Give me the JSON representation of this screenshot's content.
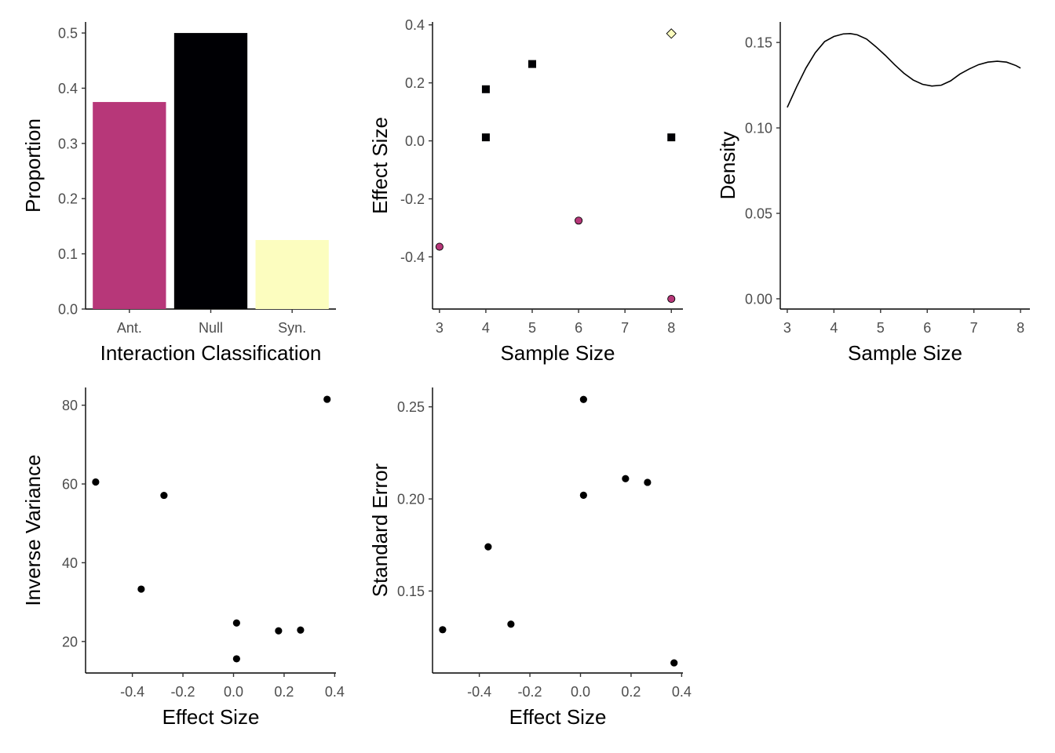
{
  "chart_data": [
    {
      "type": "bar",
      "xlabel": "Interaction Classification",
      "ylabel": "Proportion",
      "categories": [
        "Ant.",
        "Null",
        "Syn."
      ],
      "values": [
        0.375,
        0.5,
        0.125
      ],
      "colors": [
        "#B73779",
        "#000004",
        "#FCFDBF"
      ],
      "ylim": [
        0,
        0.52
      ],
      "yticks": [
        0.0,
        0.1,
        0.2,
        0.3,
        0.4,
        0.5
      ],
      "ytick_labels": [
        "0.0",
        "0.1",
        "0.2",
        "0.3",
        "0.4",
        "0.5"
      ]
    },
    {
      "type": "scatter",
      "xlabel": "Sample Size",
      "ylabel": "Effect Size",
      "xlim": [
        2.85,
        8.25
      ],
      "ylim": [
        -0.58,
        0.41
      ],
      "xticks": [
        3,
        4,
        5,
        6,
        7,
        8
      ],
      "xtick_labels": [
        "3",
        "4",
        "5",
        "6",
        "7",
        "8"
      ],
      "yticks": [
        -0.4,
        -0.2,
        0.0,
        0.2,
        0.4
      ],
      "ytick_labels": [
        "-0.4",
        "-0.2",
        "0.0",
        "0.2",
        "0.4"
      ],
      "points": [
        {
          "x": 3,
          "y": -0.365,
          "class": "Ant.",
          "shape": "circle",
          "color": "#B73779"
        },
        {
          "x": 6,
          "y": -0.275,
          "class": "Ant.",
          "shape": "circle",
          "color": "#B73779"
        },
        {
          "x": 8,
          "y": -0.545,
          "class": "Ant.",
          "shape": "circle",
          "color": "#B73779"
        },
        {
          "x": 4,
          "y": 0.178,
          "class": "Null",
          "shape": "square",
          "color": "#000004"
        },
        {
          "x": 4,
          "y": 0.012,
          "class": "Null",
          "shape": "square",
          "color": "#000004"
        },
        {
          "x": 5,
          "y": 0.265,
          "class": "Null",
          "shape": "square",
          "color": "#000004"
        },
        {
          "x": 8,
          "y": 0.012,
          "class": "Null",
          "shape": "square",
          "color": "#000004"
        },
        {
          "x": 8,
          "y": 0.37,
          "class": "Syn.",
          "shape": "diamond",
          "color": "#FCFDBF"
        }
      ]
    },
    {
      "type": "line",
      "xlabel": "Sample Size",
      "ylabel": "Density",
      "xlim": [
        2.85,
        8.2
      ],
      "ylim": [
        -0.006,
        0.162
      ],
      "xticks": [
        3,
        4,
        5,
        6,
        7,
        8
      ],
      "xtick_labels": [
        "3",
        "4",
        "5",
        "6",
        "7",
        "8"
      ],
      "yticks": [
        0.0,
        0.05,
        0.1,
        0.15
      ],
      "ytick_labels": [
        "0.00",
        "0.05",
        "0.10",
        "0.15"
      ],
      "x": [
        3.0,
        3.2,
        3.4,
        3.6,
        3.8,
        4.0,
        4.2,
        4.35,
        4.5,
        4.7,
        4.9,
        5.1,
        5.3,
        5.5,
        5.7,
        5.9,
        6.1,
        6.3,
        6.5,
        6.7,
        6.9,
        7.1,
        7.3,
        7.5,
        7.7,
        7.9,
        8.0
      ],
      "y": [
        0.112,
        0.124,
        0.135,
        0.144,
        0.1505,
        0.1535,
        0.155,
        0.1552,
        0.1545,
        0.152,
        0.1475,
        0.1425,
        0.137,
        0.132,
        0.128,
        0.1255,
        0.1245,
        0.125,
        0.1275,
        0.1315,
        0.1345,
        0.137,
        0.1385,
        0.139,
        0.1385,
        0.1365,
        0.135
      ]
    },
    {
      "type": "scatter",
      "xlabel": "Effect Size",
      "ylabel": "Inverse Variance",
      "xlim": [
        -0.585,
        0.405
      ],
      "ylim": [
        12,
        84.5
      ],
      "xticks": [
        -0.4,
        -0.2,
        0.0,
        0.2,
        0.4
      ],
      "xtick_labels": [
        "-0.4",
        "-0.2",
        "0.0",
        "0.2",
        "0.4"
      ],
      "yticks": [
        20,
        40,
        60,
        80
      ],
      "ytick_labels": [
        "20",
        "40",
        "60",
        "80"
      ],
      "points": [
        {
          "x": -0.545,
          "y": 60.5
        },
        {
          "x": -0.365,
          "y": 33.3
        },
        {
          "x": -0.275,
          "y": 57.1
        },
        {
          "x": 0.012,
          "y": 24.7
        },
        {
          "x": 0.012,
          "y": 15.6
        },
        {
          "x": 0.178,
          "y": 22.7
        },
        {
          "x": 0.265,
          "y": 22.9
        },
        {
          "x": 0.37,
          "y": 81.5
        }
      ]
    },
    {
      "type": "scatter",
      "xlabel": "Effect Size",
      "ylabel": "Standard Error",
      "xlim": [
        -0.585,
        0.405
      ],
      "ylim": [
        0.1055,
        0.2605
      ],
      "xticks": [
        -0.4,
        -0.2,
        0.0,
        0.2,
        0.4
      ],
      "xtick_labels": [
        "-0.4",
        "-0.2",
        "0.0",
        "0.2",
        "0.4"
      ],
      "yticks": [
        0.15,
        0.2,
        0.25
      ],
      "ytick_labels": [
        "0.15",
        "0.20",
        "0.25"
      ],
      "points": [
        {
          "x": -0.545,
          "y": 0.129
        },
        {
          "x": -0.365,
          "y": 0.174
        },
        {
          "x": -0.275,
          "y": 0.132
        },
        {
          "x": 0.012,
          "y": 0.254
        },
        {
          "x": 0.012,
          "y": 0.202
        },
        {
          "x": 0.178,
          "y": 0.211
        },
        {
          "x": 0.265,
          "y": 0.209
        },
        {
          "x": 0.37,
          "y": 0.111
        }
      ]
    }
  ]
}
